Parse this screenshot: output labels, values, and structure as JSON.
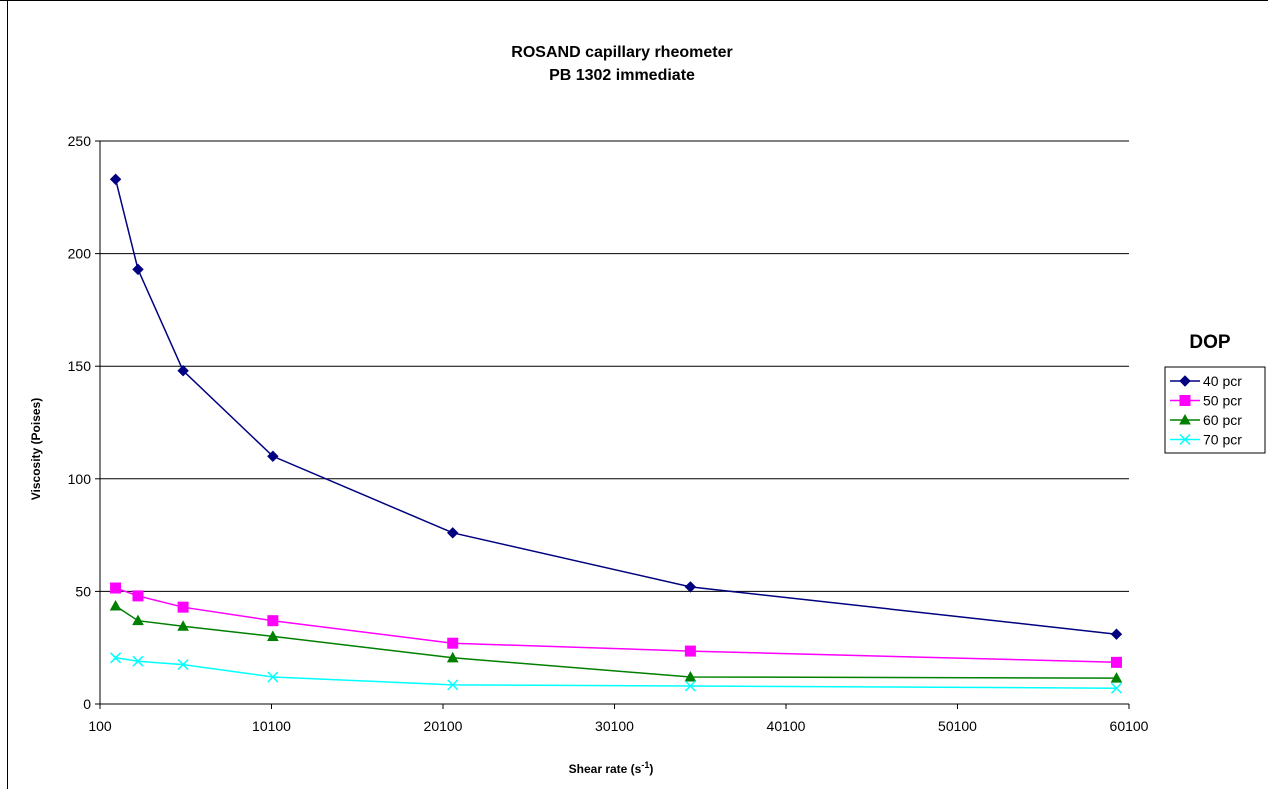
{
  "chart_data": {
    "type": "line",
    "title": "ROSAND capillary rheometer",
    "subtitle": "PB 1302  immediate",
    "xlabel": "Shear rate  (s",
    "xlabel_superscript": "-1",
    "xlabel_suffix": ")",
    "ylabel": "Viscosity (Poises)",
    "xlim": [
      100,
      60100
    ],
    "ylim": [
      0,
      250
    ],
    "x_ticks": [
      100,
      10100,
      20100,
      30100,
      40100,
      50100,
      60100
    ],
    "y_ticks": [
      0,
      50,
      100,
      150,
      200,
      250
    ],
    "grid": "horizontal",
    "legend_title": "DOP",
    "legend_position": "right",
    "series": [
      {
        "name": "40 pcr",
        "color": "#000080",
        "marker": "diamond",
        "points": [
          [
            1009,
            233
          ],
          [
            2315,
            193
          ],
          [
            4946,
            148
          ],
          [
            10179,
            110
          ],
          [
            20667,
            76
          ],
          [
            34525,
            52
          ],
          [
            59370,
            31
          ]
        ]
      },
      {
        "name": "50 pcr",
        "color": "#FF00FF",
        "marker": "square",
        "points": [
          [
            1009,
            51.5
          ],
          [
            2315,
            48
          ],
          [
            4946,
            43
          ],
          [
            10179,
            37
          ],
          [
            20667,
            27
          ],
          [
            34525,
            23.5
          ],
          [
            59370,
            18.5
          ]
        ]
      },
      {
        "name": "60 pcr",
        "color": "#008000",
        "marker": "triangle",
        "points": [
          [
            1009,
            43.5
          ],
          [
            2315,
            37
          ],
          [
            4946,
            34.5
          ],
          [
            10179,
            30
          ],
          [
            20667,
            20.5
          ],
          [
            34525,
            12
          ],
          [
            59370,
            11.5
          ]
        ]
      },
      {
        "name": "70 pcr",
        "color": "#00FFFF",
        "marker": "x",
        "points": [
          [
            1009,
            20.5
          ],
          [
            2315,
            19
          ],
          [
            4946,
            17.5
          ],
          [
            10179,
            12
          ],
          [
            20667,
            8.5
          ],
          [
            34525,
            8
          ],
          [
            59370,
            7
          ]
        ]
      }
    ]
  }
}
